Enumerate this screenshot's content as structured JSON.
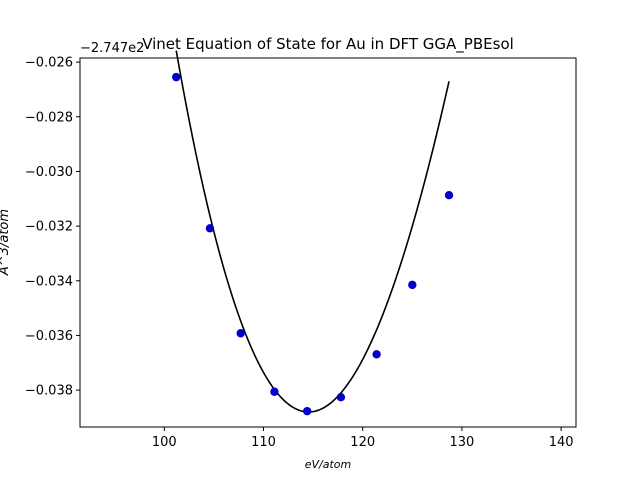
{
  "chart_data": {
    "type": "scatter",
    "title": "Vinet Equation of State for Au in DFT GGA_PBEsol",
    "xlabel": "eV/atom",
    "ylabel": "A^3/atom",
    "y_offset_label": "−2.747e2",
    "xlim": [
      91.5,
      141.5
    ],
    "ylim": [
      -0.03935,
      -0.02585
    ],
    "x_ticks": [
      100,
      110,
      120,
      130,
      140
    ],
    "x_tick_labels": [
      "100",
      "110",
      "120",
      "130",
      "140"
    ],
    "y_ticks": [
      -0.038,
      -0.036,
      -0.034,
      -0.032,
      -0.03,
      -0.028,
      -0.026
    ],
    "y_tick_labels": [
      "−0.038",
      "−0.036",
      "−0.034",
      "−0.032",
      "−0.030",
      "−0.028",
      "−0.026"
    ],
    "grid": false,
    "series": [
      {
        "kind": "points",
        "color": "#0000cc",
        "x": [
          101.2,
          104.6,
          107.7,
          111.1,
          114.4,
          117.8,
          121.4,
          125.0,
          128.7
        ],
        "y": [
          -0.02655,
          -0.03208,
          -0.03592,
          -0.03806,
          -0.03877,
          -0.03826,
          -0.03669,
          -0.03415,
          -0.03087
        ]
      },
      {
        "kind": "fit",
        "color": "#000000",
        "x_range": [
          101.2,
          128.7
        ],
        "x0": 114.55,
        "y0": -0.0388,
        "curvature": 6.75e-05,
        "skew": -5e-07
      }
    ]
  }
}
